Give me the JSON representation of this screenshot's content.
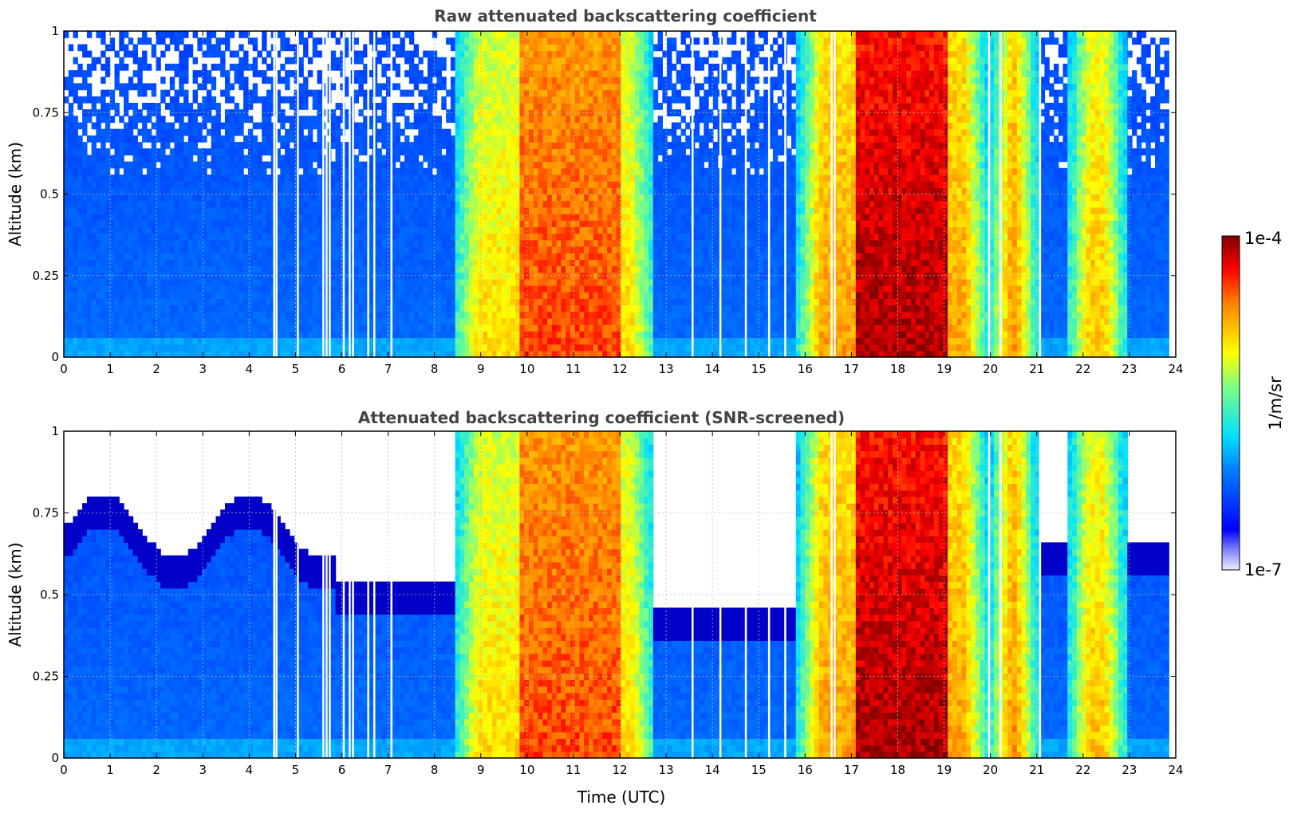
{
  "chart_data": [
    {
      "type": "heatmap",
      "title": "Raw attenuated backscattering coefficient",
      "xlabel": "",
      "ylabel": "Altitude (km)",
      "xlim": [
        0,
        24
      ],
      "ylim": [
        0,
        1
      ],
      "xticks": [
        "0",
        "1",
        "2",
        "3",
        "4",
        "5",
        "6",
        "7",
        "8",
        "9",
        "10",
        "11",
        "12",
        "13",
        "14",
        "15",
        "16",
        "17",
        "18",
        "19",
        "20",
        "21",
        "22",
        "23",
        "24"
      ],
      "yticks": [
        "0",
        "0.25",
        "0.5",
        "0.75",
        "1"
      ],
      "grid": true,
      "screened": false
    },
    {
      "type": "heatmap",
      "title": "Attenuated backscattering coefficient (SNR-screened)",
      "xlabel": "Time (UTC)",
      "ylabel": "Altitude (km)",
      "xlim": [
        0,
        24
      ],
      "ylim": [
        0,
        1
      ],
      "xticks": [
        "0",
        "1",
        "2",
        "3",
        "4",
        "5",
        "6",
        "7",
        "8",
        "9",
        "10",
        "11",
        "12",
        "13",
        "14",
        "15",
        "16",
        "17",
        "18",
        "19",
        "20",
        "21",
        "22",
        "23",
        "24"
      ],
      "yticks": [
        "0",
        "0.25",
        "0.5",
        "0.75",
        "1"
      ],
      "grid": true,
      "screened": true
    }
  ],
  "colorbar": {
    "label": "1/m/sr",
    "max_label": "1e-4",
    "min_label": "1e-7",
    "scale": "log",
    "colormap": "jet"
  },
  "cloud_events": [
    {
      "start": 8.4,
      "end": 12.7,
      "core_start": 9.8,
      "core_end": 12.0,
      "intensity": 0.85
    },
    {
      "start": 15.8,
      "end": 19.9,
      "core_start": 17.0,
      "core_end": 19.0,
      "intensity": 0.97
    },
    {
      "start": 19.9,
      "end": 21.0,
      "core_start": 20.0,
      "core_end": 20.8,
      "intensity": 0.78
    },
    {
      "start": 21.6,
      "end": 22.9,
      "core_start": 21.8,
      "core_end": 22.7,
      "intensity": 0.72
    }
  ],
  "data_gaps": [
    4.52,
    4.57,
    5.03,
    5.58,
    5.65,
    5.72,
    6.02,
    6.15,
    6.22,
    6.55,
    6.68,
    7.05,
    13.55,
    14.15,
    14.7,
    15.2,
    15.55,
    16.55,
    16.62,
    19.95,
    20.2,
    21.05
  ]
}
